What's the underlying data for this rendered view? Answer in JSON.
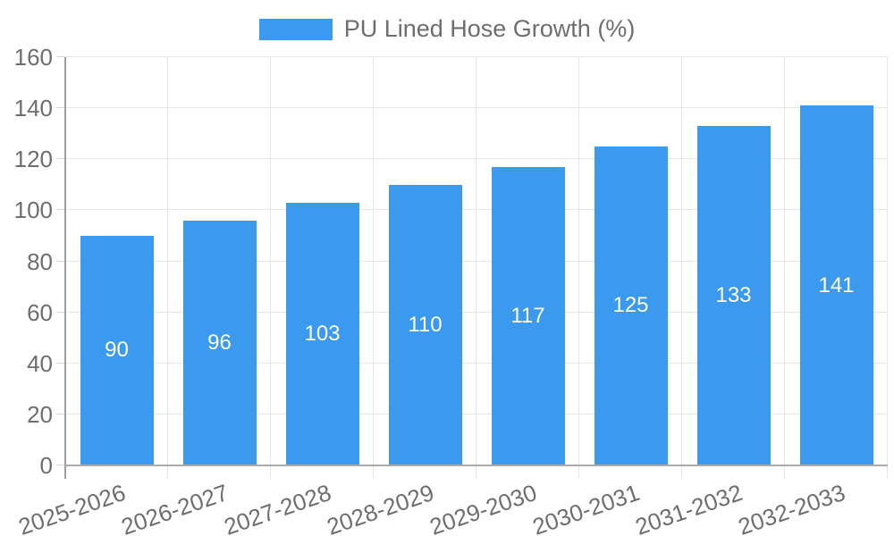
{
  "chart_data": {
    "type": "bar",
    "legend_label": "PU Lined Hose Growth (%)",
    "legend_position": "top",
    "categories": [
      "2025-2026",
      "2026-2027",
      "2027-2028",
      "2028-2029",
      "2029-2030",
      "2030-2031",
      "2031-2032",
      "2032-2033"
    ],
    "values": [
      90,
      96,
      103,
      110,
      117,
      125,
      133,
      141
    ],
    "value_labels": [
      "90",
      "96",
      "103",
      "110",
      "117",
      "125",
      "133",
      "141"
    ],
    "y_tick_labels": [
      "0",
      "20",
      "40",
      "60",
      "80",
      "100",
      "120",
      "140",
      "160"
    ],
    "ylim": [
      0,
      160
    ],
    "ytick_step": 20,
    "grid": "on",
    "xlabel": "",
    "ylabel": "",
    "bar_color": "#3b9aee",
    "bar_label_color": "#ffffff",
    "grid_color": "#e6e6e6",
    "axis_color": "#9e9e9e",
    "tick_label_color": "#6e6e6e"
  }
}
